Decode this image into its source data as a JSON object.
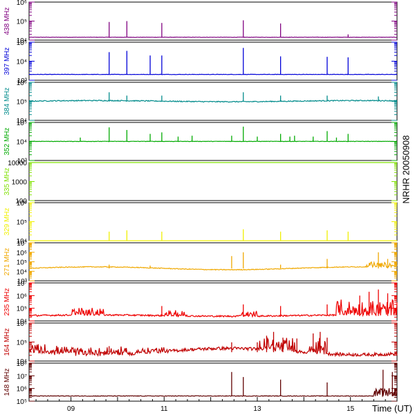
{
  "chart_data": {
    "type": "line",
    "side_label": "NRHR 20050908",
    "x_axis": {
      "title": "Time (UT)",
      "range": [
        8.1,
        16.0
      ],
      "tick_labels": [
        {
          "value": 9,
          "label": "09"
        },
        {
          "value": 11,
          "label": "11"
        },
        {
          "value": 13,
          "label": "13"
        },
        {
          "value": 15,
          "label": "15"
        }
      ]
    },
    "panels": [
      {
        "name": "438 MHz",
        "color": "#800080",
        "scale": "log",
        "ylim": [
          10000,
          1000000
        ],
        "tick_labels": [
          "10⁴",
          "10⁵",
          "10⁶"
        ],
        "baseline": 14000,
        "noise": 0.02,
        "drift": 0,
        "spikes": [
          [
            9.82,
            90000
          ],
          [
            10.2,
            100000
          ],
          [
            10.95,
            80000
          ],
          [
            12.7,
            110000
          ],
          [
            13.5,
            75000
          ],
          [
            14.95,
            20000
          ]
        ],
        "bursts": []
      },
      {
        "name": "397 MHz",
        "color": "#0000d8",
        "scale": "log",
        "ylim": [
          1000,
          100000
        ],
        "tick_labels": [
          "10³",
          "10⁴",
          "10⁵"
        ],
        "baseline": 2000,
        "noise": 0.02,
        "drift": 0,
        "spikes": [
          [
            9.82,
            30000
          ],
          [
            10.2,
            35000
          ],
          [
            10.7,
            20000
          ],
          [
            10.95,
            20000
          ],
          [
            12.7,
            50000
          ],
          [
            13.5,
            18000
          ],
          [
            14.5,
            17000
          ],
          [
            14.95,
            16000
          ]
        ],
        "bursts": []
      },
      {
        "name": "384 MHz",
        "color": "#008b8b",
        "scale": "log",
        "ylim": [
          10000,
          1000000
        ],
        "tick_labels": [
          "10⁴",
          "10⁵",
          "10⁶"
        ],
        "baseline": 100000,
        "noise": 0.05,
        "drift": 0.03,
        "spikes": [
          [
            9.82,
            300000
          ],
          [
            10.2,
            200000
          ],
          [
            10.95,
            200000
          ],
          [
            12.7,
            300000
          ],
          [
            13.5,
            200000
          ],
          [
            14.5,
            200000
          ],
          [
            15.6,
            180000
          ]
        ],
        "bursts": []
      },
      {
        "name": "352 MHz",
        "color": "#00aa00",
        "scale": "log",
        "ylim": [
          1000,
          100000
        ],
        "tick_labels": [
          "10³",
          "10⁴",
          "10⁵"
        ],
        "baseline": 10000,
        "noise": 0.02,
        "drift": 0,
        "spikes": [
          [
            9.2,
            16000
          ],
          [
            9.82,
            55000
          ],
          [
            10.2,
            40000
          ],
          [
            10.7,
            25000
          ],
          [
            10.95,
            30000
          ],
          [
            11.3,
            18000
          ],
          [
            11.6,
            20000
          ],
          [
            12.45,
            20000
          ],
          [
            12.7,
            60000
          ],
          [
            13.0,
            18000
          ],
          [
            13.5,
            25000
          ],
          [
            13.7,
            18000
          ],
          [
            13.8,
            20000
          ],
          [
            14.2,
            18000
          ],
          [
            14.5,
            35000
          ],
          [
            14.7,
            16000
          ],
          [
            14.95,
            25000
          ]
        ],
        "bursts": []
      },
      {
        "name": "335 MHz",
        "color": "#7fe000",
        "scale": "log",
        "ylim": [
          100,
          10000
        ],
        "tick_labels": [
          "100",
          "1000",
          "10000"
        ],
        "baseline": 10000,
        "noise": 0,
        "drift": 0,
        "spikes": [],
        "bursts": []
      },
      {
        "name": "329 MHz",
        "color": "#f0f000",
        "scale": "log",
        "ylim": [
          10000,
          1000000
        ],
        "tick_labels": [
          "10⁴",
          "10⁵",
          "10⁶"
        ],
        "baseline": 10000,
        "noise": 0,
        "drift": 0,
        "spikes": [
          [
            9.82,
            30000
          ],
          [
            10.2,
            35000
          ],
          [
            10.95,
            30000
          ],
          [
            12.7,
            40000
          ],
          [
            13.5,
            30000
          ],
          [
            14.5,
            35000
          ],
          [
            14.95,
            30000
          ]
        ],
        "bursts": []
      },
      {
        "name": "271 MHz",
        "color": "#f0a800",
        "scale": "log",
        "ylim": [
          1000,
          10000000
        ],
        "tick_labels": [
          "10³",
          "10⁴",
          "10⁵",
          "10⁶",
          "10⁷"
        ],
        "baseline": 20000,
        "noise": 0.08,
        "drift": 0.15,
        "spikes": [
          [
            9.82,
            50000
          ],
          [
            10.7,
            40000
          ],
          [
            12.45,
            400000
          ],
          [
            12.7,
            1000000
          ],
          [
            13.5,
            50000
          ],
          [
            14.5,
            200000
          ],
          [
            15.6,
            1000000
          ],
          [
            15.8,
            200000
          ]
        ],
        "bursts": [
          [
            15.3,
            16.0,
            0.5
          ]
        ]
      },
      {
        "name": "235 MHz",
        "color": "#ee0000",
        "scale": "log",
        "ylim": [
          10000,
          10000000
        ],
        "tick_labels": [
          "10⁴",
          "10⁵",
          "10⁶",
          "10⁷"
        ],
        "baseline": 25000,
        "noise": 0.12,
        "drift": 0.05,
        "spikes": [
          [
            10.95,
            150000
          ],
          [
            12.7,
            200000
          ],
          [
            13.5,
            150000
          ],
          [
            14.5,
            200000
          ],
          [
            15.2,
            1000000
          ],
          [
            15.4,
            2000000
          ],
          [
            15.6,
            3000000
          ],
          [
            15.8,
            1500000
          ]
        ],
        "bursts": [
          [
            9.0,
            9.7,
            0.6
          ],
          [
            11.0,
            11.5,
            0.4
          ],
          [
            12.6,
            13.0,
            0.4
          ],
          [
            14.7,
            16.0,
            1.2
          ]
        ]
      },
      {
        "name": "164 MHz",
        "color": "#c00000",
        "scale": "log",
        "ylim": [
          10000,
          10000000
        ],
        "tick_labels": [
          "10⁴",
          "10⁵",
          "10⁶"
        ],
        "baseline": 50000,
        "noise": 0.25,
        "drift": -0.25,
        "spikes": [
          [
            9.82,
            150000
          ],
          [
            12.45,
            300000
          ],
          [
            13.0,
            300000
          ],
          [
            13.2,
            1000000
          ],
          [
            13.35,
            2000000
          ],
          [
            13.55,
            700000
          ],
          [
            13.85,
            600000
          ],
          [
            14.2,
            1500000
          ],
          [
            14.35,
            2000000
          ],
          [
            14.5,
            700000
          ]
        ],
        "bursts": [
          [
            8.1,
            10.2,
            0.6
          ],
          [
            10.4,
            11.0,
            0.4
          ],
          [
            13.0,
            13.8,
            1.0
          ],
          [
            14.1,
            14.5,
            1.2
          ]
        ]
      },
      {
        "name": "148 MHz",
        "color": "#600000",
        "scale": "log",
        "ylim": [
          100000,
          100000000
        ],
        "tick_labels": [
          "10⁵",
          "10⁶",
          "10⁷",
          "10⁸"
        ],
        "baseline": 250000,
        "noise": 0.05,
        "drift": 0,
        "spikes": [
          [
            12.45,
            20000000
          ],
          [
            12.7,
            8000000
          ],
          [
            13.5,
            5000000
          ],
          [
            14.5,
            3000000
          ],
          [
            15.7,
            30000000
          ],
          [
            15.9,
            20000000
          ]
        ],
        "bursts": [
          [
            15.5,
            16.0,
            0.6
          ]
        ]
      }
    ]
  }
}
